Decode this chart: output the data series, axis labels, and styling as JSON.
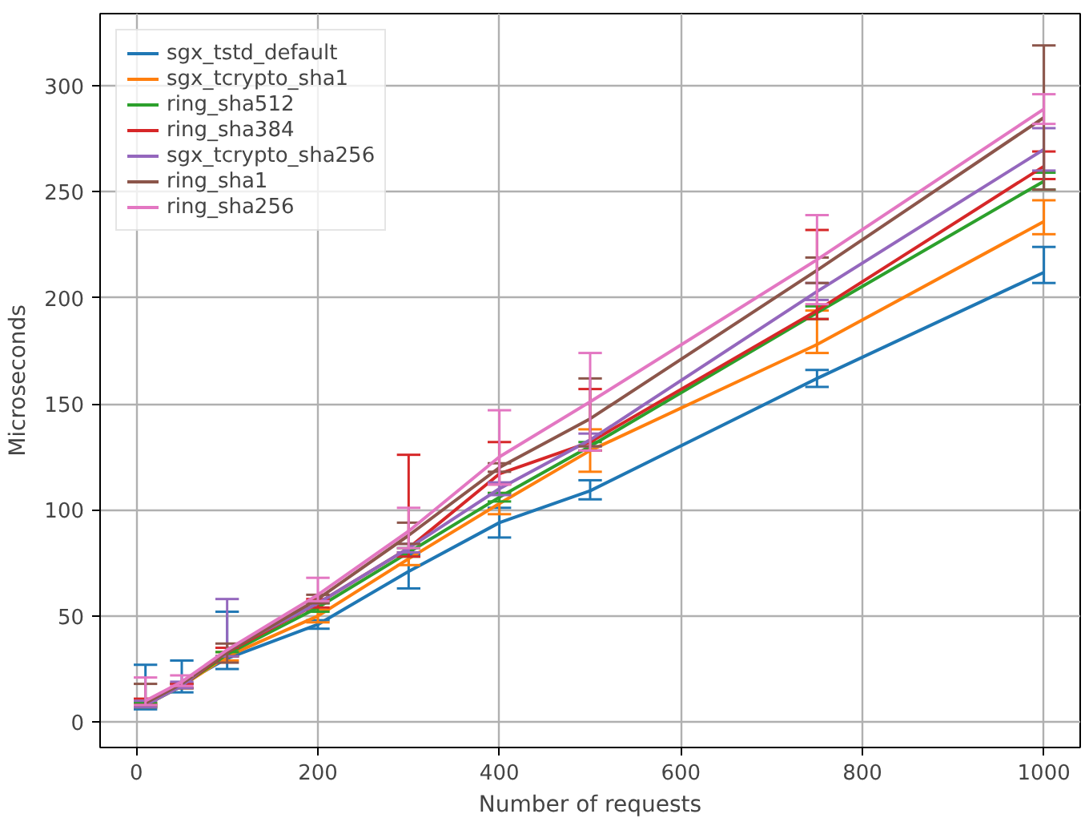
{
  "chart_data": {
    "type": "line",
    "xlabel": "Number of requests",
    "ylabel": "Microseconds",
    "x": [
      10,
      50,
      100,
      200,
      300,
      400,
      500,
      750,
      1000
    ],
    "xlim": [
      -40,
      1040
    ],
    "ylim": [
      -12,
      334
    ],
    "xticks": [
      0,
      200,
      400,
      600,
      800,
      1000
    ],
    "yticks": [
      0,
      50,
      100,
      150,
      200,
      250,
      300
    ],
    "grid": true,
    "legend": "top left",
    "marker": "none",
    "line_style": "solid",
    "series": [
      {
        "name": "sgx_tstd_default",
        "color": "#1f77b4",
        "values": [
          8,
          18,
          30,
          46,
          71,
          94,
          109,
          162,
          212
        ],
        "errors": [
          [
            6,
            27
          ],
          [
            14,
            29
          ],
          [
            25,
            52
          ],
          [
            44,
            48
          ],
          [
            63,
            79
          ],
          [
            87,
            101
          ],
          [
            105,
            114
          ],
          [
            158,
            166
          ],
          [
            207,
            224
          ]
        ]
      },
      {
        "name": "sgx_tcrypto_sha1",
        "color": "#ff7f0e",
        "values": [
          8,
          17,
          31,
          50,
          77,
          103,
          128,
          178,
          236
        ],
        "errors": [
          [
            7,
            9
          ],
          [
            16,
            18
          ],
          [
            29,
            33
          ],
          [
            47,
            53
          ],
          [
            74,
            80
          ],
          [
            98,
            108
          ],
          [
            118,
            138
          ],
          [
            174,
            194
          ],
          [
            230,
            246
          ]
        ]
      },
      {
        "name": "ring_sha512",
        "color": "#2ca02c",
        "values": [
          8,
          17,
          32,
          54,
          80,
          106,
          130,
          193,
          255
        ],
        "errors": [
          [
            7,
            9
          ],
          [
            16,
            18
          ],
          [
            31,
            33
          ],
          [
            52,
            56
          ],
          [
            78,
            82
          ],
          [
            104,
            108
          ],
          [
            128,
            132
          ],
          [
            190,
            196
          ],
          [
            251,
            259
          ]
        ]
      },
      {
        "name": "ring_sha384",
        "color": "#d62728",
        "values": [
          9,
          17,
          33,
          56,
          82,
          117,
          132,
          194,
          262
        ],
        "errors": [
          [
            8,
            11
          ],
          [
            16,
            18
          ],
          [
            31,
            35
          ],
          [
            54,
            58
          ],
          [
            78,
            126
          ],
          [
            112,
            132
          ],
          [
            128,
            157
          ],
          [
            190,
            232
          ],
          [
            256,
            269
          ]
        ]
      },
      {
        "name": "sgx_tcrypto_sha256",
        "color": "#9467bd",
        "values": [
          8,
          17,
          34,
          56,
          82,
          110,
          133,
          203,
          270
        ],
        "errors": [
          [
            7,
            10
          ],
          [
            16,
            19
          ],
          [
            31,
            58
          ],
          null,
          [
            80,
            84
          ],
          [
            107,
            113
          ],
          [
            130,
            136
          ],
          [
            199,
            207
          ],
          [
            260,
            280
          ]
        ]
      },
      {
        "name": "ring_sha1",
        "color": "#8c564b",
        "values": [
          9,
          18,
          33,
          58,
          88,
          120,
          143,
          213,
          285
        ],
        "errors": [
          [
            8,
            18
          ],
          null,
          [
            28,
            37
          ],
          [
            56,
            60
          ],
          [
            84,
            94
          ],
          [
            118,
            122
          ],
          [
            130,
            162
          ],
          [
            207,
            219
          ],
          [
            251,
            319
          ]
        ]
      },
      {
        "name": "ring_sha256",
        "color": "#e377c2",
        "values": [
          10,
          19,
          34,
          60,
          90,
          125,
          151,
          218,
          289
        ],
        "errors": [
          [
            8,
            21
          ],
          [
            17,
            22
          ],
          null,
          [
            57,
            68
          ],
          [
            82,
            101
          ],
          [
            112,
            147
          ],
          [
            128,
            174
          ],
          [
            197,
            239
          ],
          [
            282,
            296
          ]
        ]
      }
    ]
  }
}
